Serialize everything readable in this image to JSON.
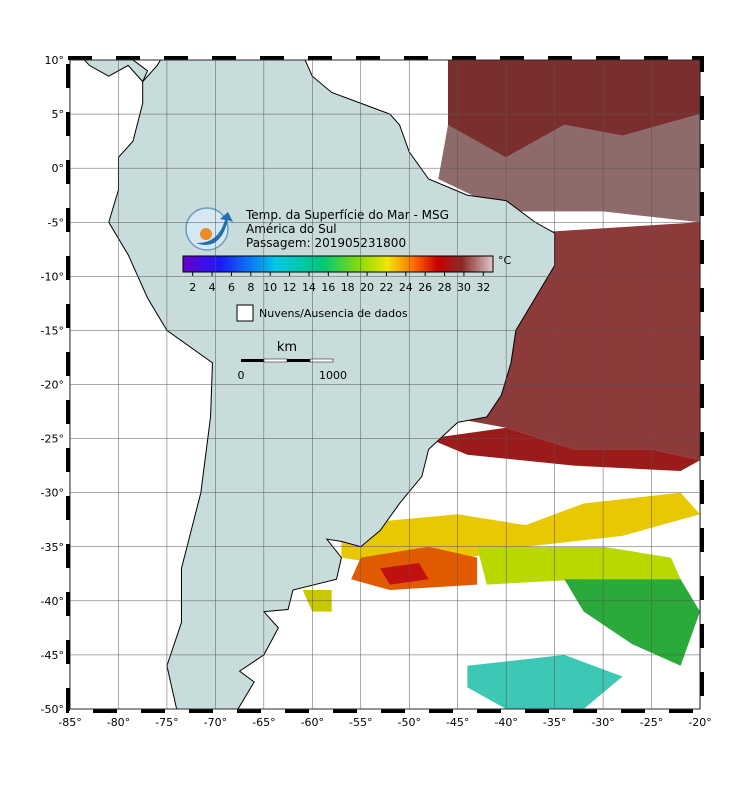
{
  "map": {
    "title": [
      "Temp. da Superfície do Mar - MSG",
      "América do Sul",
      "Passagem: 201905231800"
    ],
    "xlim": [
      -85,
      -20
    ],
    "ylim": [
      -50,
      10
    ],
    "xticks": [
      {
        "value": -85,
        "label": "-85°"
      },
      {
        "value": -80,
        "label": "-80°"
      },
      {
        "value": -75,
        "label": "-75°"
      },
      {
        "value": -70,
        "label": "-70°"
      },
      {
        "value": -65,
        "label": "-65°"
      },
      {
        "value": -60,
        "label": "-60°"
      },
      {
        "value": -55,
        "label": "-55°"
      },
      {
        "value": -50,
        "label": "-50°"
      },
      {
        "value": -45,
        "label": "-45°"
      },
      {
        "value": -40,
        "label": "-40°"
      },
      {
        "value": -35,
        "label": "-35°"
      },
      {
        "value": -30,
        "label": "-30°"
      },
      {
        "value": -25,
        "label": "-25°"
      },
      {
        "value": -20,
        "label": "-20°"
      }
    ],
    "yticks": [
      {
        "value": 10,
        "label": "10°"
      },
      {
        "value": 5,
        "label": "5°"
      },
      {
        "value": 0,
        "label": "0°"
      },
      {
        "value": -5,
        "label": "-5°"
      },
      {
        "value": -10,
        "label": "-10°"
      },
      {
        "value": -15,
        "label": "-15°"
      },
      {
        "value": -20,
        "label": "-20°"
      },
      {
        "value": -25,
        "label": "-25°"
      },
      {
        "value": -30,
        "label": "-30°"
      },
      {
        "value": -35,
        "label": "-35°"
      },
      {
        "value": -40,
        "label": "-40°"
      },
      {
        "value": -45,
        "label": "-45°"
      },
      {
        "value": -50,
        "label": "-50°"
      }
    ],
    "colorbar": {
      "unit": "°C",
      "lim": [
        1,
        33
      ],
      "ticks": [
        2,
        4,
        6,
        8,
        10,
        12,
        14,
        16,
        18,
        20,
        22,
        24,
        26,
        28,
        30,
        32
      ]
    },
    "legend": "Nuvens/Ausencia de dados",
    "scale": {
      "unit": "km",
      "labels": [
        "0",
        "1000"
      ]
    }
  }
}
